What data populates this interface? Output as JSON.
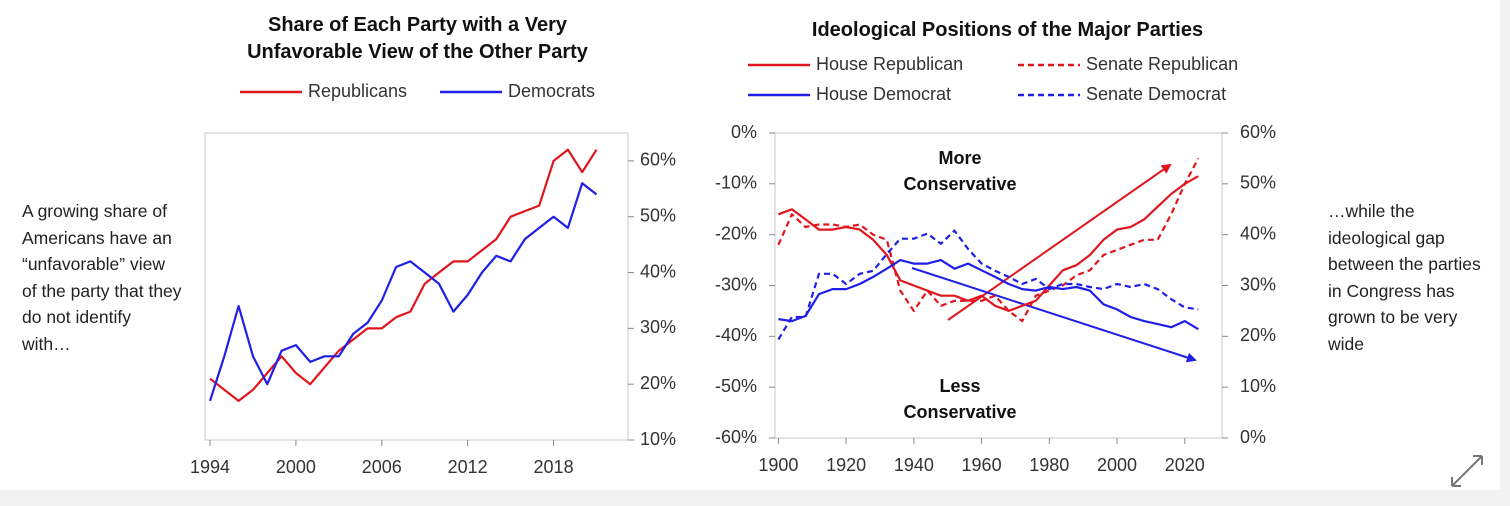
{
  "left_note": "A growing share of Americans have an “unfavorable” view of the party that they do not identify with…",
  "right_note": "…while the ideological gap between the parties in Congress has grown to be very wide",
  "chart_data": [
    {
      "type": "line",
      "title": "Share of Each Party with a Very Unfavorable View of the Other Party",
      "x": [
        1994,
        1995,
        1996,
        1997,
        1998,
        1999,
        2000,
        2001,
        2002,
        2003,
        2004,
        2005,
        2006,
        2007,
        2008,
        2009,
        2010,
        2011,
        2012,
        2013,
        2014,
        2015,
        2016,
        2017,
        2018,
        2019,
        2020,
        2021
      ],
      "series": [
        {
          "name": "Republicans",
          "color": "#e0161e",
          "values": [
            21,
            19,
            17,
            19,
            22,
            25,
            22,
            20,
            23,
            26,
            28,
            30,
            30,
            32,
            33,
            38,
            40,
            42,
            42,
            44,
            46,
            50,
            51,
            52,
            60,
            62,
            58,
            62
          ]
        },
        {
          "name": "Democrats",
          "color": "#1f1fe8",
          "values": [
            17,
            25,
            34,
            25,
            20,
            26,
            27,
            24,
            25,
            25,
            29,
            31,
            35,
            41,
            42,
            40,
            38,
            33,
            36,
            40,
            43,
            42,
            46,
            48,
            50,
            48,
            56,
            54
          ]
        }
      ],
      "xlim": [
        1993.65,
        2023.2
      ],
      "xticks": [
        1994,
        2000,
        2006,
        2012,
        2018
      ],
      "ylim": [
        10,
        65
      ],
      "yaxis_side": "right",
      "yticks": [
        {
          "value": 10,
          "label": "10%"
        },
        {
          "value": 20,
          "label": "20%"
        },
        {
          "value": 30,
          "label": "30%"
        },
        {
          "value": 40,
          "label": "40%"
        },
        {
          "value": 50,
          "label": "50%"
        },
        {
          "value": 60,
          "label": "60%"
        }
      ],
      "grid": false
    },
    {
      "type": "line",
      "title": "Ideological Positions of the Major Parties",
      "x": [
        1900,
        1904,
        1908,
        1912,
        1916,
        1920,
        1924,
        1928,
        1932,
        1936,
        1940,
        1944,
        1948,
        1952,
        1956,
        1960,
        1964,
        1968,
        1972,
        1976,
        1980,
        1984,
        1988,
        1992,
        1996,
        2000,
        2004,
        2008,
        2012,
        2016,
        2020,
        2024
      ],
      "series": [
        {
          "name": "House Republican",
          "color": "#e0161e",
          "dashed": false,
          "axis": "y2",
          "values": [
            44,
            45,
            43,
            41,
            41,
            41.5,
            41,
            39,
            36,
            31,
            30,
            29,
            28,
            28,
            27,
            28,
            26,
            25,
            26,
            27,
            30,
            33,
            34,
            36,
            39,
            41,
            41.5,
            43,
            45.5,
            48,
            50,
            51.5
          ]
        },
        {
          "name": "Senate Republican",
          "color": "#e0161e",
          "dashed": true,
          "axis": "y2",
          "values": [
            38,
            44,
            41.5,
            42,
            42,
            41.5,
            42,
            40,
            39,
            29,
            25,
            29,
            26,
            27,
            27,
            27,
            28,
            25,
            23,
            28,
            29,
            30,
            32,
            33,
            36,
            37,
            38,
            39,
            39,
            44,
            50,
            55
          ]
        },
        {
          "name": "House Democrat",
          "color": "#1f1fe8",
          "dashed": false,
          "values": [
            -36.6,
            -37,
            -36,
            -31.7,
            -30.7,
            -30.7,
            -29.7,
            -28.3,
            -26.7,
            -25,
            -25.7,
            -25.7,
            -25,
            -26.7,
            -25.7,
            -27,
            -28.3,
            -29.7,
            -30.7,
            -31,
            -30.3,
            -30.7,
            -30.3,
            -31,
            -33.7,
            -34.7,
            -36.2,
            -37,
            -37.6,
            -38.2,
            -37,
            -38.6
          ]
        },
        {
          "name": "Senate Democrat",
          "color": "#1f1fe8",
          "dashed": true,
          "values": [
            -40.6,
            -36.2,
            -36.2,
            -27.7,
            -27.7,
            -29.7,
            -27.7,
            -27.1,
            -23.8,
            -20.8,
            -20.8,
            -19.8,
            -21.8,
            -19.2,
            -22.8,
            -25.7,
            -27.1,
            -28.3,
            -29.7,
            -28.7,
            -30.7,
            -29.7,
            -29.7,
            -30.3,
            -30.7,
            -29.7,
            -30.3,
            -29.7,
            -30.7,
            -32.7,
            -34.3,
            -34.7
          ]
        }
      ],
      "xlim": [
        1899,
        2031
      ],
      "xticks": [
        1900,
        1920,
        1940,
        1960,
        1980,
        2000,
        2020
      ],
      "ylim": [
        -60,
        0
      ],
      "ytick_color": "#1f1fe8",
      "yticks": [
        {
          "value": -60,
          "label": "-60%"
        },
        {
          "value": -50,
          "label": "-50%"
        },
        {
          "value": -40,
          "label": "-40%"
        },
        {
          "value": -30,
          "label": "-30%"
        },
        {
          "value": -20,
          "label": "-20%"
        },
        {
          "value": -10,
          "label": "-10%"
        },
        {
          "value": 0,
          "label": "0%"
        }
      ],
      "y2lim": [
        0,
        60
      ],
      "y2tick_color": "#e0161e",
      "y2ticks": [
        {
          "value": 0,
          "label": "0%"
        },
        {
          "value": 10,
          "label": "10%"
        },
        {
          "value": 20,
          "label": "20%"
        },
        {
          "value": 30,
          "label": "30%"
        },
        {
          "value": 40,
          "label": "40%"
        },
        {
          "value": 50,
          "label": "50%"
        },
        {
          "value": 60,
          "label": "60%"
        }
      ],
      "annotations": [
        "More Conservative",
        "Less Conservative"
      ],
      "grid": false
    }
  ]
}
